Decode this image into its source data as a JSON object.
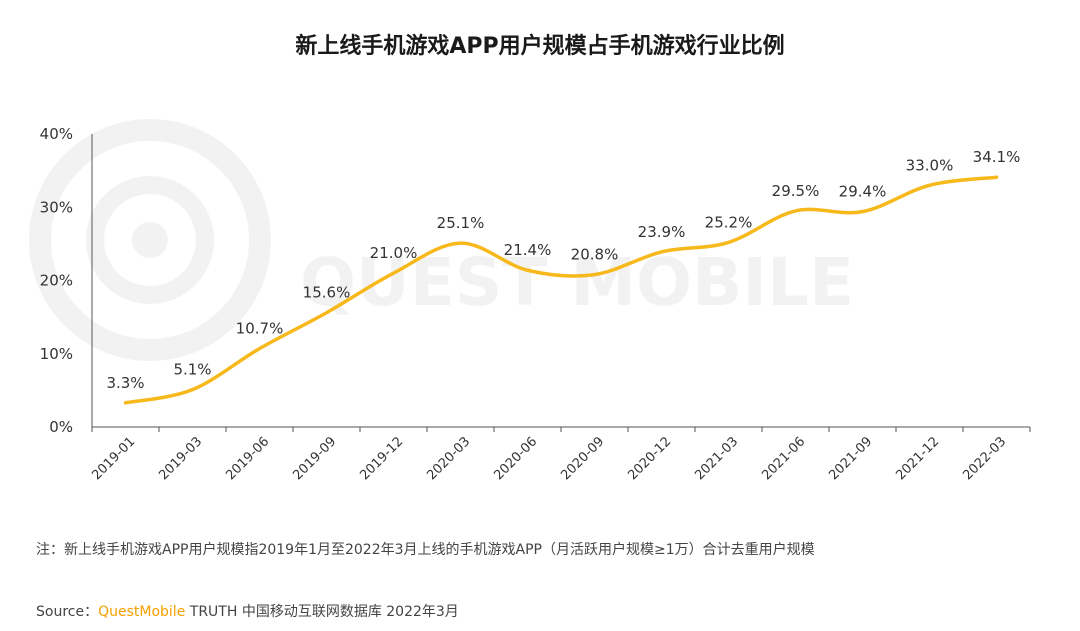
{
  "title": "新上线手机游戏APP用户规模占手机游戏行业比例",
  "watermark": "QUEST MOBILE",
  "note": "注：新上线手机游戏APP用户规模指2019年1月至2022年3月上线的手机游戏APP（月活跃用户规模≥1万）合计去重用户规模",
  "source": {
    "label": "Source：",
    "brand": "QuestMobile",
    "rest": " TRUTH 中国移动互联网数据库 2022年3月"
  },
  "colors": {
    "line": "#f7b81c",
    "axis": "#555555",
    "text": "#333333",
    "brand": "#f5a000"
  },
  "chart_data": {
    "type": "line",
    "title": "新上线手机游戏APP用户规模占手机游戏行业比例",
    "categories": [
      "2019-01",
      "2019-03",
      "2019-06",
      "2019-09",
      "2019-12",
      "2020-03",
      "2020-06",
      "2020-09",
      "2020-12",
      "2021-03",
      "2021-06",
      "2021-09",
      "2021-12",
      "2022-03"
    ],
    "values": [
      3.3,
      5.1,
      10.7,
      15.6,
      21.0,
      25.1,
      21.4,
      20.8,
      23.9,
      25.2,
      29.5,
      29.4,
      33.0,
      34.1
    ],
    "data_labels": [
      "3.3%",
      "5.1%",
      "10.7%",
      "15.6%",
      "21.0%",
      "25.1%",
      "21.4%",
      "20.8%",
      "23.9%",
      "25.2%",
      "29.5%",
      "29.4%",
      "33.0%",
      "34.1%"
    ],
    "ylim": [
      0,
      40
    ],
    "yticks": [
      0,
      10,
      20,
      30,
      40
    ],
    "ytick_labels": [
      "0%",
      "10%",
      "20%",
      "30%",
      "40%"
    ],
    "grid": false,
    "smooth": true
  }
}
